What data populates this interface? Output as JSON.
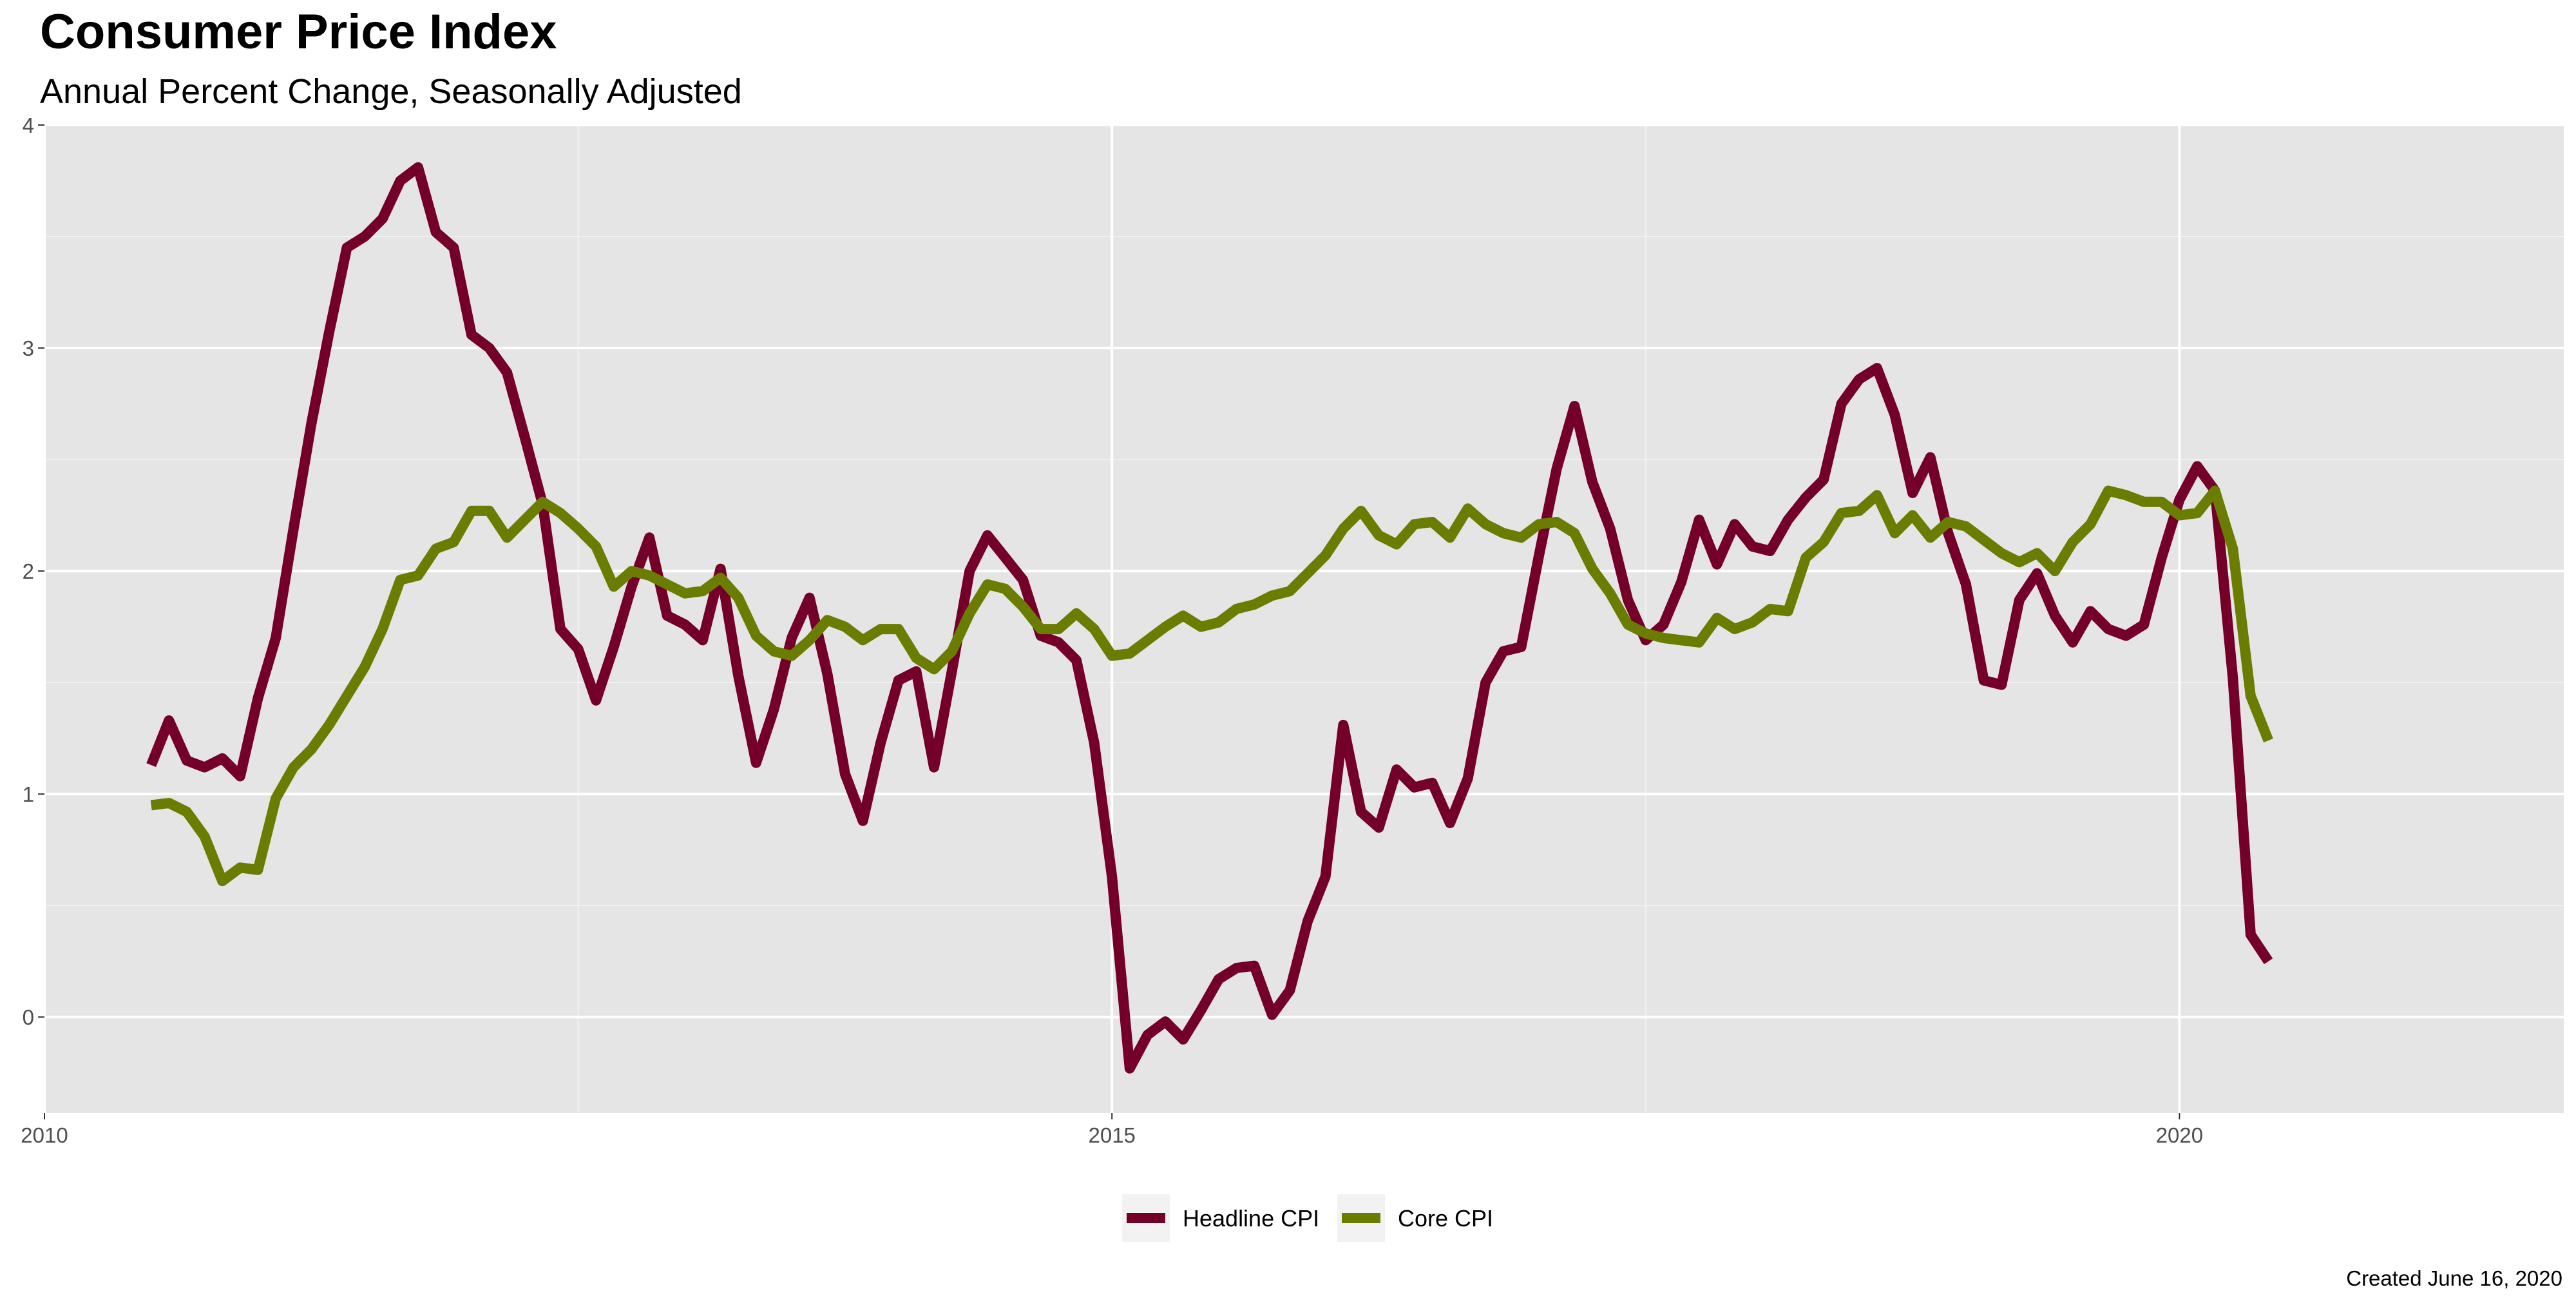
{
  "chart_data": {
    "type": "line",
    "title": "Consumer Price Index",
    "subtitle": "Annual Percent Change, Seasonally Adjusted",
    "caption": "Created June 16, 2020",
    "xlabel": "",
    "ylabel": "",
    "xlim": [
      2010.0,
      2021.8
    ],
    "ylim": [
      -0.43,
      4.0
    ],
    "x_ticks": [
      2010,
      2015,
      2020
    ],
    "y_ticks": [
      0,
      1,
      2,
      3,
      4
    ],
    "x_start": 2010.5,
    "x_step": 0.0833333,
    "grid": true,
    "legend_position": "bottom",
    "series": [
      {
        "name": "Headline CPI",
        "color": "#74002a",
        "values": [
          1.13,
          1.33,
          1.15,
          1.12,
          1.16,
          1.08,
          1.43,
          1.7,
          2.19,
          2.66,
          3.07,
          3.45,
          3.5,
          3.58,
          3.75,
          3.81,
          3.52,
          3.45,
          3.06,
          3.0,
          2.89,
          2.6,
          2.3,
          1.74,
          1.65,
          1.42,
          1.66,
          1.93,
          2.15,
          1.8,
          1.76,
          1.69,
          2.01,
          1.53,
          1.14,
          1.38,
          1.7,
          1.88,
          1.54,
          1.09,
          0.88,
          1.23,
          1.51,
          1.55,
          1.12,
          1.55,
          2.0,
          2.16,
          2.06,
          1.96,
          1.71,
          1.68,
          1.6,
          1.23,
          0.63,
          -0.23,
          -0.08,
          -0.02,
          -0.1,
          0.03,
          0.17,
          0.22,
          0.23,
          0.01,
          0.12,
          0.43,
          0.63,
          1.31,
          0.92,
          0.85,
          1.11,
          1.03,
          1.05,
          0.87,
          1.07,
          1.5,
          1.64,
          1.66,
          2.07,
          2.46,
          2.74,
          2.4,
          2.19,
          1.87,
          1.69,
          1.76,
          1.95,
          2.23,
          2.03,
          2.21,
          2.11,
          2.09,
          2.23,
          2.33,
          2.41,
          2.75,
          2.86,
          2.91,
          2.7,
          2.35,
          2.51,
          2.17,
          1.94,
          1.51,
          1.49,
          1.87,
          1.99,
          1.8,
          1.68,
          1.82,
          1.74,
          1.71,
          1.76,
          2.06,
          2.32,
          2.47,
          2.36,
          1.52,
          0.37,
          0.25
        ]
      },
      {
        "name": "Core CPI",
        "color": "#6a7d00",
        "values": [
          0.95,
          0.96,
          0.92,
          0.81,
          0.61,
          0.67,
          0.66,
          0.98,
          1.12,
          1.2,
          1.31,
          1.44,
          1.57,
          1.74,
          1.96,
          1.98,
          2.1,
          2.13,
          2.27,
          2.27,
          2.15,
          2.23,
          2.31,
          2.26,
          2.19,
          2.11,
          1.93,
          2.0,
          1.98,
          1.94,
          1.9,
          1.91,
          1.97,
          1.88,
          1.71,
          1.64,
          1.62,
          1.69,
          1.78,
          1.75,
          1.69,
          1.74,
          1.74,
          1.61,
          1.56,
          1.64,
          1.81,
          1.94,
          1.92,
          1.84,
          1.74,
          1.74,
          1.81,
          1.74,
          1.62,
          1.63,
          1.69,
          1.75,
          1.8,
          1.75,
          1.77,
          1.83,
          1.85,
          1.89,
          1.91,
          1.99,
          2.07,
          2.19,
          2.27,
          2.16,
          2.12,
          2.21,
          2.22,
          2.15,
          2.28,
          2.21,
          2.17,
          2.15,
          2.21,
          2.22,
          2.17,
          2.01,
          1.9,
          1.76,
          1.72,
          1.7,
          1.69,
          1.68,
          1.79,
          1.74,
          1.77,
          1.83,
          1.82,
          2.06,
          2.13,
          2.26,
          2.27,
          2.34,
          2.17,
          2.25,
          2.15,
          2.22,
          2.2,
          2.14,
          2.08,
          2.04,
          2.08,
          2.0,
          2.13,
          2.21,
          2.36,
          2.34,
          2.31,
          2.31,
          2.25,
          2.26,
          2.36,
          2.1,
          1.44,
          1.24
        ]
      }
    ]
  }
}
